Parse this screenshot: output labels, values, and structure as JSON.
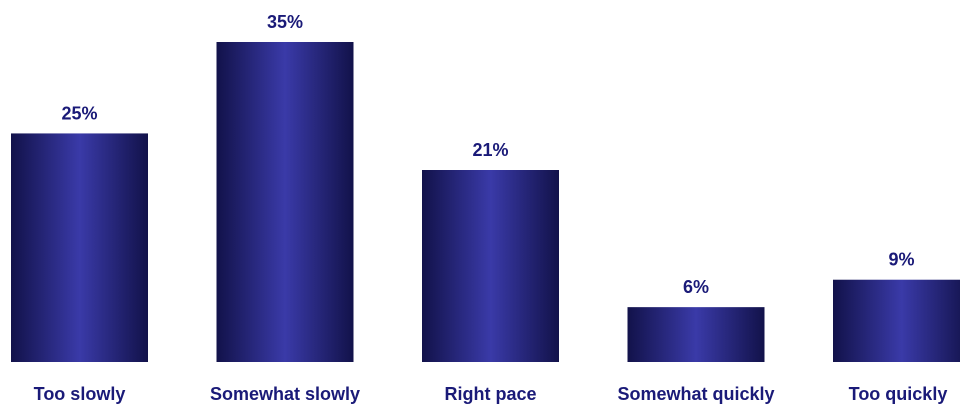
{
  "chart_data": {
    "type": "bar",
    "title": "",
    "xlabel": "",
    "ylabel": "",
    "categories": [
      "Too slowly",
      "Somewhat slowly",
      "Right pace",
      "Somewhat quickly",
      "Too quickly"
    ],
    "values": [
      25,
      35,
      21,
      6,
      9
    ],
    "value_labels": [
      "25%",
      "35%",
      "21%",
      "6%",
      "9%"
    ],
    "ylim": [
      0,
      35
    ],
    "grid": false,
    "legend": "none",
    "colors": {
      "bar_edge": "#12124a",
      "bar_center": "#3a3aa8",
      "label": "#1a1a78"
    }
  }
}
